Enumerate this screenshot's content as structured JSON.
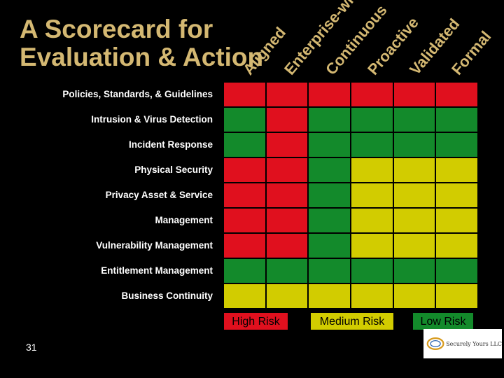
{
  "title": {
    "line1": "A Scorecard for",
    "line2": "Evaluation & Action"
  },
  "columns": [
    "Aligned",
    "Enterprise-wide",
    "Continuous",
    "Proactive",
    "Validated",
    "Formal"
  ],
  "rows": [
    "Policies, Standards, & Guidelines",
    "Intrusion & Virus Detection",
    "Incident Response",
    "Physical Security",
    "Privacy Asset & Service",
    "Management",
    "Vulnerability Management",
    "Entitlement  Management",
    "Business Continuity"
  ],
  "grid": [
    [
      "R",
      "R",
      "R",
      "R",
      "R",
      "R"
    ],
    [
      "G",
      "R",
      "G",
      "G",
      "G",
      "G"
    ],
    [
      "G",
      "R",
      "G",
      "G",
      "G",
      "G"
    ],
    [
      "R",
      "R",
      "G",
      "Y",
      "Y",
      "Y"
    ],
    [
      "R",
      "R",
      "G",
      "Y",
      "Y",
      "Y"
    ],
    [
      "R",
      "R",
      "G",
      "Y",
      "Y",
      "Y"
    ],
    [
      "R",
      "R",
      "G",
      "Y",
      "Y",
      "Y"
    ],
    [
      "G",
      "G",
      "G",
      "G",
      "G",
      "G"
    ],
    [
      "Y",
      "Y",
      "Y",
      "Y",
      "Y",
      "Y"
    ]
  ],
  "colors": {
    "R": "#e0101e",
    "G": "#138a2b",
    "Y": "#d2cc00",
    "title": "#d4b872"
  },
  "legend": {
    "high": "High Risk",
    "medium": "Medium Risk",
    "low": "Low Risk"
  },
  "page_number": "31",
  "logo": {
    "text": "Securely Yours LLC"
  }
}
